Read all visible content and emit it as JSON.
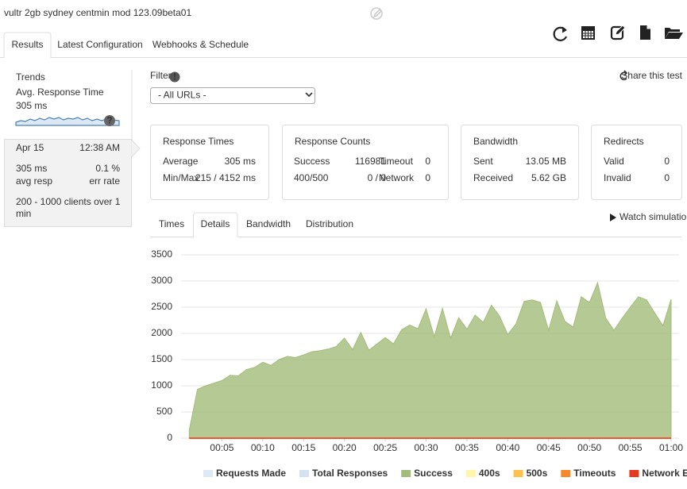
{
  "header": {
    "title": "vultr 2gb sydney centmin mod 123.09beta01",
    "tabs": [
      "Results",
      "Latest Configuration",
      "Webhooks & Schedule"
    ]
  },
  "trends": {
    "title": "Trends",
    "metric": "Avg. Response Time",
    "value": "305 ms",
    "help": "?",
    "date": "Apr 15",
    "time": "12:38 AM",
    "avg_resp": "305 ms",
    "avg_resp_label": "avg resp",
    "err_rate": "0.1 %",
    "err_rate_label": "err rate",
    "clients_line1": "200  -  1000 clients over 1",
    "clients_line2": "min"
  },
  "filter": {
    "label": "Filter",
    "info": "!",
    "selected": "- All URLs -",
    "share": "Share this test"
  },
  "cards": [
    {
      "title": "Response Times",
      "rows": [
        [
          "Average",
          "305 ms"
        ],
        [
          "Min/Max",
          "215 / 4152 ms"
        ]
      ]
    },
    {
      "title": "Response Counts",
      "rows": [
        [
          "Success",
          "116981",
          "Timeout",
          "0"
        ],
        [
          "400/500",
          "0 / 0",
          "Network",
          "0"
        ]
      ]
    },
    {
      "title": "Bandwidth",
      "rows": [
        [
          "Sent",
          "13.05 MB"
        ],
        [
          "Received",
          "5.62 GB"
        ]
      ]
    },
    {
      "title": "Redirects",
      "rows": [
        [
          "Valid",
          "0"
        ],
        [
          "Invalid",
          "0"
        ]
      ]
    }
  ],
  "subtabs": [
    "Times",
    "Details",
    "Bandwidth",
    "Distribution"
  ],
  "watch": "Watch simulation",
  "chart_data": {
    "type": "area",
    "x": [
      1,
      2,
      3,
      4,
      5,
      6,
      7,
      8,
      9,
      10,
      11,
      12,
      13,
      14,
      15,
      16,
      17,
      18,
      19,
      20,
      21,
      22,
      23,
      24,
      25,
      26,
      27,
      28,
      29,
      30,
      31,
      32,
      33,
      34,
      35,
      36,
      37,
      38,
      39,
      40,
      41,
      42,
      43,
      44,
      45,
      46,
      47,
      48,
      49,
      50,
      51,
      52,
      53,
      54,
      55,
      56,
      57,
      58,
      59,
      60
    ],
    "series": [
      {
        "name": "Requests Made",
        "color": "#dde9f5"
      },
      {
        "name": "Total Responses",
        "color": "#d6e2f0"
      },
      {
        "name": "Success",
        "color": "#a3bc7a",
        "values": [
          150,
          930,
          1000,
          1050,
          1100,
          1200,
          1190,
          1310,
          1350,
          1450,
          1390,
          1500,
          1560,
          1540,
          1590,
          1650,
          1670,
          1700,
          1750,
          1910,
          1690,
          2020,
          1680,
          1800,
          1920,
          1800,
          2070,
          2160,
          2090,
          2470,
          1940,
          2480,
          1910,
          2300,
          2080,
          2350,
          2210,
          2540,
          2330,
          1980,
          2180,
          2610,
          2640,
          2590,
          2060,
          2620,
          2230,
          2120,
          2700,
          2590,
          2970,
          2290,
          2060,
          2290,
          2500,
          2700,
          2640,
          2390,
          2150,
          2650
        ]
      },
      {
        "name": "400s",
        "color": "#fff7a8"
      },
      {
        "name": "500s",
        "color": "#fcc24d"
      },
      {
        "name": "Timeouts",
        "color": "#f5892e",
        "values": [
          0,
          0,
          0,
          0,
          0,
          0,
          0,
          0,
          0,
          0,
          0,
          0,
          0,
          0,
          0,
          0,
          0,
          0,
          0,
          0,
          0,
          0,
          0,
          0,
          0,
          0,
          0,
          0,
          0,
          0,
          0,
          0,
          0,
          0,
          0,
          0,
          0,
          0,
          0,
          0,
          0,
          0,
          0,
          0,
          0,
          0,
          0,
          0,
          0,
          0,
          0,
          0,
          0,
          0,
          0,
          0,
          0,
          0,
          0,
          0
        ]
      },
      {
        "name": "Network Errors",
        "color": "#e63a1e",
        "values": [
          0,
          0,
          0,
          0,
          0,
          0,
          0,
          0,
          0,
          0,
          0,
          0,
          0,
          0,
          0,
          0,
          0,
          0,
          0,
          0,
          0,
          0,
          0,
          0,
          0,
          0,
          0,
          0,
          0,
          0,
          0,
          0,
          0,
          0,
          0,
          0,
          0,
          0,
          0,
          0,
          0,
          0,
          0,
          0,
          0,
          0,
          0,
          0,
          0,
          0,
          0,
          0,
          0,
          0,
          0,
          0,
          0,
          0,
          0,
          0
        ]
      }
    ],
    "xlim": [
      0,
      60
    ],
    "xticks": [
      {
        "value": 5,
        "label": "00:05"
      },
      {
        "value": 10,
        "label": "00:10"
      },
      {
        "value": 15,
        "label": "00:15"
      },
      {
        "value": 20,
        "label": "00:20"
      },
      {
        "value": 25,
        "label": "00:25"
      },
      {
        "value": 30,
        "label": "00:30"
      },
      {
        "value": 35,
        "label": "00:35"
      },
      {
        "value": 40,
        "label": "00:40"
      },
      {
        "value": 45,
        "label": "00:45"
      },
      {
        "value": 50,
        "label": "00:50"
      },
      {
        "value": 55,
        "label": "00:55"
      },
      {
        "value": 60,
        "label": "01:00"
      }
    ],
    "ylim": [
      0,
      3500
    ],
    "yticks": [
      0,
      500,
      1000,
      1500,
      2000,
      2500,
      3000,
      3500
    ],
    "grid": true
  }
}
